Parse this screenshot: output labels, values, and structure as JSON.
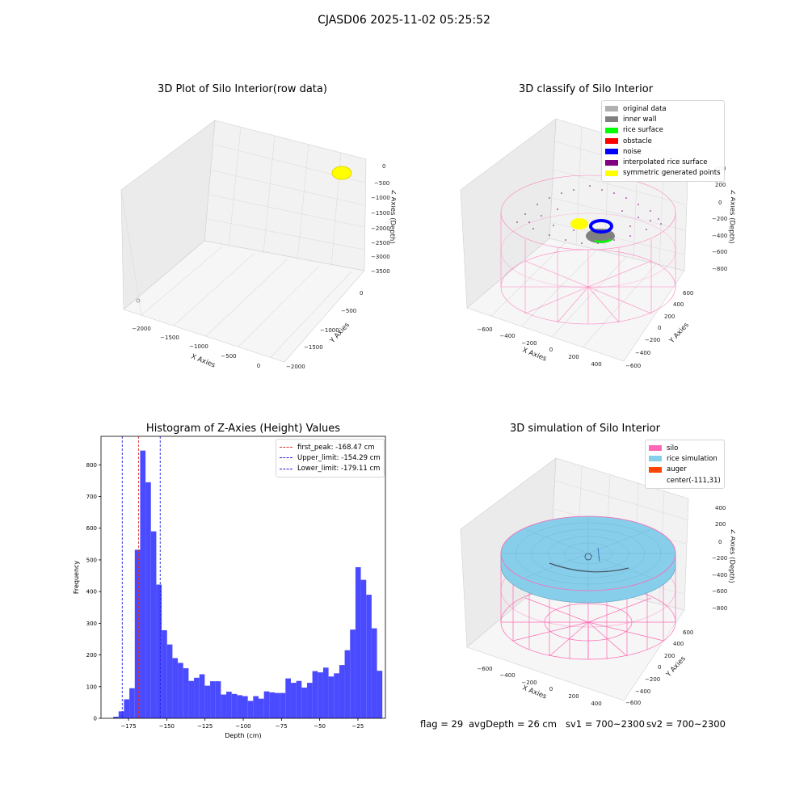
{
  "suptitle": "CJASD06 2025-11-02 05:25:52",
  "colors": {
    "bar": "#4a4aff",
    "peak_line": "#e03030",
    "limit_line": "#2020dd",
    "silo": "#ff69b4",
    "rice": "#87ceeb",
    "auger": "#ff4500"
  },
  "plot1": {
    "title": "3D Plot of Silo Interior(row data)",
    "xlabel": "X Axies",
    "ylabel": "Y Axies",
    "zlabel": "Z Axies (Depth)",
    "xticks": [
      "−2000",
      "−1500",
      "−1000",
      "−500",
      "0"
    ],
    "yticks": [
      "0",
      "−500",
      "−1000",
      "−1500",
      "−2000"
    ],
    "zticks": [
      "0",
      "−500",
      "−1000",
      "−1500",
      "−2000",
      "−2500",
      "−3000",
      "−3500"
    ]
  },
  "plot2": {
    "title": "3D classify of Silo Interior",
    "xlabel": "X Axies",
    "ylabel": "Y Axies",
    "zlabel": "Z Axies (Depth)",
    "xticks": [
      "−600",
      "−400",
      "−200",
      "0",
      "200",
      "400"
    ],
    "yticks": [
      "600",
      "400",
      "200",
      "0",
      "−200",
      "−400",
      "−600"
    ],
    "zticks": [
      "400",
      "200",
      "0",
      "−200",
      "−400",
      "−600",
      "−800"
    ],
    "legend": [
      {
        "label": "original data",
        "color": "#b0b0b0"
      },
      {
        "label": "inner wall",
        "color": "#808080"
      },
      {
        "label": "rice surface",
        "color": "#00ff00"
      },
      {
        "label": "obstacle",
        "color": "#ff0000"
      },
      {
        "label": "noise",
        "color": "#0000ff"
      },
      {
        "label": "interpolated rice surface",
        "color": "#800080"
      },
      {
        "label": "symmetric generated points",
        "color": "#ffff00"
      }
    ]
  },
  "plot4": {
    "title": "3D simulation of Silo Interior",
    "xlabel": "X Axies",
    "ylabel": "Y Axies",
    "zlabel": "Z Axies (Depth)",
    "xticks": [
      "−600",
      "−400",
      "−200",
      "0",
      "200",
      "400"
    ],
    "yticks": [
      "600",
      "400",
      "200",
      "0",
      "−200",
      "−400",
      "−600"
    ],
    "zticks": [
      "400",
      "200",
      "0",
      "−200",
      "−400",
      "−600",
      "−800"
    ],
    "legend": [
      {
        "label": "silo",
        "color": "#ff69b4"
      },
      {
        "label": "rice simulation",
        "color": "#87ceeb"
      },
      {
        "label": "auger",
        "color": "#ff4500"
      },
      {
        "label": "center(-111,31)",
        "color": ""
      }
    ]
  },
  "footer": {
    "flag": "flag = 29",
    "avg": "avgDepth = 26 cm",
    "sv1": "sv1 = 700~2300",
    "sv2": "sv2 = 700~2300"
  },
  "chart_data": [
    {
      "type": "bar",
      "title": "Histogram of Z-Axies (Height) Values",
      "xlabel": "Depth (cm)",
      "ylabel": "Frequency",
      "xlim": [
        -193,
        -7
      ],
      "ylim": [
        0,
        890
      ],
      "xticks": [
        -175,
        -150,
        -125,
        -100,
        -75,
        -50,
        -25
      ],
      "xtick_labels": [
        "−175",
        "−150",
        "−125",
        "−100",
        "−75",
        "−50",
        "−25"
      ],
      "yticks": [
        0,
        100,
        200,
        300,
        400,
        500,
        600,
        700,
        800
      ],
      "bin_start": -185,
      "bin_width": 3.52,
      "values": [
        5,
        22,
        60,
        95,
        532,
        845,
        745,
        590,
        422,
        278,
        233,
        190,
        175,
        158,
        118,
        128,
        139,
        103,
        117,
        117,
        75,
        84,
        77,
        73,
        70,
        55,
        70,
        62,
        85,
        82,
        80,
        80,
        126,
        112,
        118,
        97,
        112,
        149,
        145,
        160,
        132,
        142,
        168,
        215,
        280,
        477,
        437,
        390,
        284,
        150
      ],
      "vlines": [
        {
          "label": "first_peak: -168.47 cm",
          "x": -168.47,
          "color": "#e03030"
        },
        {
          "label": "Upper_limit: -154.29 cm",
          "x": -154.29,
          "color": "#2020dd"
        },
        {
          "label": "Lower_limit: -179.11 cm",
          "x": -179.11,
          "color": "#2020dd"
        }
      ],
      "legend_position": "top-right"
    }
  ]
}
